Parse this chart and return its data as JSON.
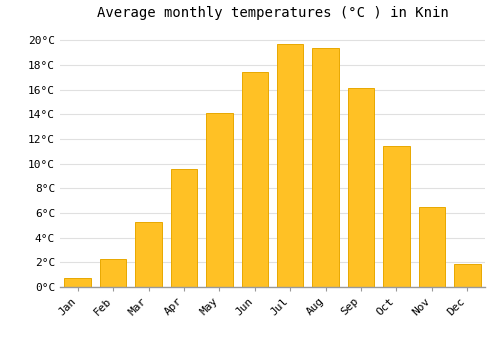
{
  "title": "Average monthly temperatures (°C ) in Knin",
  "months": [
    "Jan",
    "Feb",
    "Mar",
    "Apr",
    "May",
    "Jun",
    "Jul",
    "Aug",
    "Sep",
    "Oct",
    "Nov",
    "Dec"
  ],
  "temperatures": [
    0.7,
    2.3,
    5.3,
    9.6,
    14.1,
    17.4,
    19.7,
    19.4,
    16.1,
    11.4,
    6.5,
    1.9
  ],
  "bar_color": "#FFC125",
  "bar_edge_color": "#E8A800",
  "background_color": "#FFFFFF",
  "yticks": [
    0,
    2,
    4,
    6,
    8,
    10,
    12,
    14,
    16,
    18,
    20
  ],
  "ylim": [
    0,
    21
  ],
  "grid_color": "#E0E0E0",
  "title_fontsize": 10,
  "tick_fontsize": 8,
  "font_family": "monospace"
}
